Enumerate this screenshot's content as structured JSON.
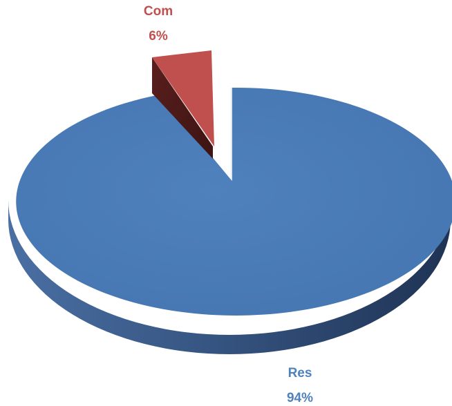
{
  "chart_data": {
    "type": "pie",
    "style": "3d-exploded",
    "slices": [
      {
        "label": "Res",
        "value": 94,
        "value_label": "94%",
        "color": "#4F81BD"
      },
      {
        "label": "Com",
        "value": 6,
        "value_label": "6%",
        "color": "#C0504D"
      }
    ]
  }
}
